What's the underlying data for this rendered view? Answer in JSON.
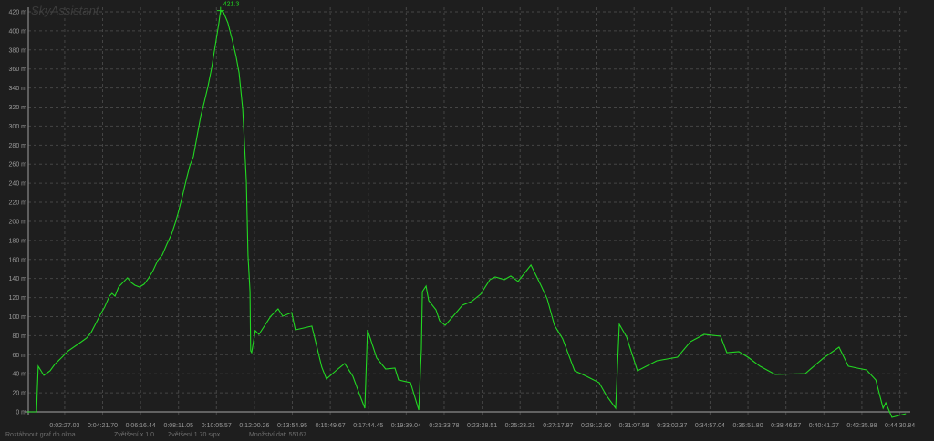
{
  "app_title": "SkyAssistant",
  "status_bar": {
    "fit_to_window": "Roztáhnout graf do okna",
    "zoom_factor": "Zvětšení x 1.0",
    "zoom_scale": "Zvětšení  1.70 s/px",
    "data_count": "Množství dat: 55167"
  },
  "colors": {
    "background": "#1e1e1e",
    "line": "#22d822",
    "grid": "#454545",
    "axis": "#8a8a8a"
  },
  "chart_data": {
    "type": "line",
    "title": "",
    "xlabel": "",
    "ylabel": "",
    "y_unit": "m",
    "grid": true,
    "xlim": [
      "0:00:37",
      "0:44:54"
    ],
    "ylim": [
      0,
      420
    ],
    "yticks": [
      0,
      20,
      40,
      60,
      80,
      100,
      120,
      140,
      160,
      180,
      200,
      220,
      240,
      260,
      280,
      300,
      320,
      340,
      360,
      380,
      400,
      420
    ],
    "ytick_labels": [
      "0 m",
      "20 m",
      "40 m",
      "60 m",
      "80 m",
      "100 m",
      "120 m",
      "140 m",
      "160 m",
      "180 m",
      "200 m",
      "220 m",
      "240 m",
      "260 m",
      "280 m",
      "300 m",
      "320 m",
      "340 m",
      "360 m",
      "380 m",
      "400 m",
      "420 m"
    ],
    "xtick_labels": [
      "0:02:27.03",
      "0:04:21.70",
      "0:06:16.44",
      "0:08:11.05",
      "0:10:05.57",
      "0:12:00.26",
      "0:13:54.95",
      "0:15:49.67",
      "0:17:44.45",
      "0:19:39.04",
      "0:21:33.78",
      "0:23:28.51",
      "0:25:23.21",
      "0:27:17.97",
      "0:29:12.80",
      "0:31:07.59",
      "0:33:02.37",
      "0:34:57.04",
      "0:36:51.80",
      "0:38:46.57",
      "0:40:41.27",
      "0:42:35.98",
      "0:44:30.84"
    ],
    "annotations": [
      {
        "text": "421.3",
        "x": "0:10:18",
        "y": 421.3
      }
    ],
    "series": [
      {
        "x": [
          "0:00:34",
          "0:01:02",
          "0:01:04",
          "0:01:07",
          "0:01:24",
          "0:01:43",
          "0:01:57",
          "0:02:19",
          "0:02:38",
          "0:03:06",
          "0:03:33",
          "0:03:47",
          "0:04:01",
          "0:04:15",
          "0:04:28",
          "0:04:42",
          "0:04:50",
          "0:04:59",
          "0:05:10",
          "0:05:23",
          "0:05:37",
          "0:05:48",
          "0:05:59",
          "0:06:13",
          "0:06:27",
          "0:06:41",
          "0:06:54",
          "0:07:08",
          "0:07:22",
          "0:07:36",
          "0:07:50",
          "0:08:01",
          "0:08:09",
          "0:08:23",
          "0:08:36",
          "0:08:45",
          "0:08:56",
          "0:09:07",
          "0:09:18",
          "0:09:29",
          "0:09:40",
          "0:09:51",
          "0:10:02",
          "0:10:13",
          "0:10:18",
          "0:10:27",
          "0:10:40",
          "0:10:54",
          "0:11:05",
          "0:11:14",
          "0:11:25",
          "0:11:30",
          "0:11:36",
          "0:11:41",
          "0:11:47",
          "0:11:49",
          "0:11:52",
          "0:12:03",
          "0:12:14",
          "0:12:50",
          "0:13:12",
          "0:13:26",
          "0:13:53",
          "0:14:04",
          "0:14:29",
          "0:14:54",
          "0:15:24",
          "0:15:38",
          "0:16:06",
          "0:16:33",
          "0:16:58",
          "0:17:15",
          "0:17:34",
          "0:17:42",
          "0:18:10",
          "0:18:37",
          "0:19:05",
          "0:19:16",
          "0:19:52",
          "0:20:17",
          "0:20:25",
          "0:20:28",
          "0:20:39",
          "0:20:47",
          "0:21:09",
          "0:21:20",
          "0:21:37",
          "0:22:01",
          "0:22:29",
          "0:22:56",
          "0:23:24",
          "0:23:52",
          "0:24:08",
          "0:24:36",
          "0:24:55",
          "0:25:17",
          "0:25:56",
          "0:26:26",
          "0:26:45",
          "0:27:07",
          "0:27:32",
          "0:28:08",
          "0:28:44",
          "0:29:22",
          "0:29:44",
          "0:30:12",
          "0:30:23",
          "0:30:45",
          "0:31:18",
          "0:32:16",
          "0:33:19",
          "0:33:58",
          "0:34:39",
          "0:35:29",
          "0:35:48",
          "0:36:24",
          "0:36:52",
          "0:37:28",
          "0:38:14",
          "0:39:45",
          "0:40:40",
          "0:41:27",
          "0:41:55",
          "0:42:22",
          "0:42:50",
          "0:43:18",
          "0:43:40",
          "0:43:48",
          "0:44:07",
          "0:44:49"
        ],
        "y": [
          0,
          0,
          21,
          47.9,
          38.3,
          43.1,
          49.8,
          57.4,
          64.1,
          70.8,
          77.5,
          83.3,
          92.8,
          102.4,
          110.1,
          121.5,
          124.4,
          121.5,
          131.1,
          135.9,
          140.7,
          135.9,
          133,
          131.1,
          134,
          140.7,
          148.3,
          158.9,
          164.6,
          176.1,
          186.6,
          198.1,
          207.7,
          226.8,
          245.9,
          258.4,
          268,
          289,
          310.1,
          325.4,
          341.6,
          360.8,
          384.7,
          408.6,
          421.3,
          419.2,
          408.6,
          389.5,
          373.2,
          356,
          317.7,
          284.2,
          241.2,
          164.6,
          126.3,
          64.1,
          62.2,
          85.2,
          81.3,
          100.5,
          108.1,
          100.5,
          104.3,
          86.1,
          88,
          90,
          46.9,
          34.5,
          43.1,
          50.7,
          37.3,
          21.1,
          3.8,
          86.1,
          56.5,
          45,
          45.9,
          33.5,
          30.6,
          1.9,
          66,
          126.3,
          132.1,
          116.8,
          107.2,
          95.7,
          90.9,
          100.5,
          112,
          115.8,
          123.5,
          138.8,
          141.6,
          138.8,
          142.6,
          136.9,
          154.1,
          133,
          118.7,
          90.9,
          76.6,
          43.1,
          37.3,
          30.6,
          17.2,
          3.8,
          91.9,
          78.5,
          43.1,
          53.6,
          57.4,
          73.7,
          81.3,
          79.4,
          62.2,
          63.2,
          57.4,
          47.9,
          39.2,
          40.2,
          56.5,
          67.9,
          47.9,
          45.9,
          44,
          33.5,
          3.8,
          9.6,
          -5.7,
          -1.9
        ]
      }
    ]
  }
}
